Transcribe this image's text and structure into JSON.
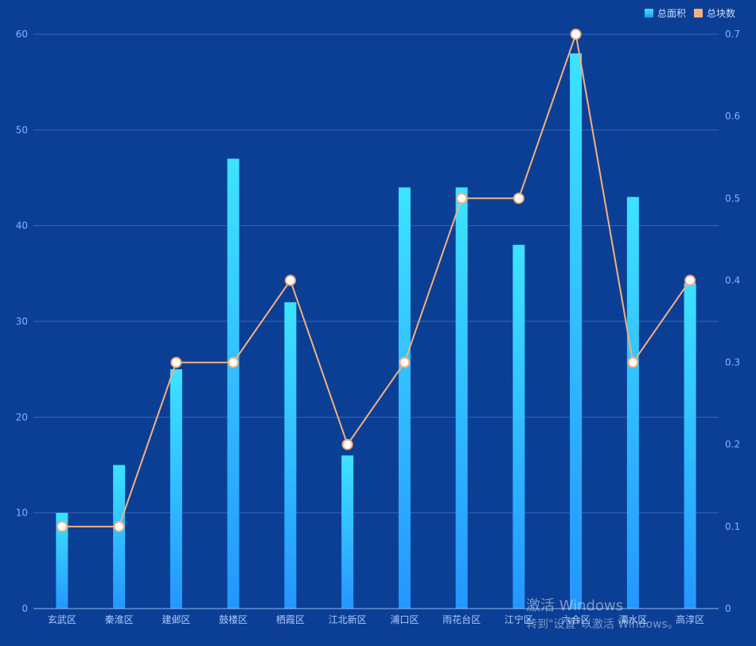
{
  "chart_data": {
    "type": "bar",
    "categories": [
      "玄武区",
      "秦淮区",
      "建邺区",
      "鼓楼区",
      "栖霞区",
      "江北新区",
      "浦口区",
      "雨花台区",
      "江宁区",
      "六合区",
      "溧水区",
      "高淳区"
    ],
    "series": [
      {
        "name": "总面积",
        "type": "bar",
        "axis": "left",
        "color_top": "#3de3ff",
        "color_bottom": "#2596ff",
        "values": [
          10,
          15,
          25,
          47,
          32,
          16,
          44,
          44,
          38,
          58,
          43,
          34
        ]
      },
      {
        "name": "总块数",
        "type": "line",
        "axis": "right",
        "color": "#f4b07e",
        "values": [
          0.1,
          0.1,
          0.3,
          0.3,
          0.4,
          0.2,
          0.3,
          0.5,
          0.5,
          0.7,
          0.3,
          0.4
        ]
      }
    ],
    "y_left": {
      "min": 0,
      "max": 60,
      "ticks": [
        "0",
        "10",
        "20",
        "30",
        "40",
        "50",
        "60"
      ]
    },
    "y_right": {
      "min": 0,
      "max": 0.7,
      "ticks": [
        "0",
        "0.1",
        "0.2",
        "0.3",
        "0.4",
        "0.5",
        "0.6",
        "0.7"
      ]
    },
    "grid": true,
    "legend_position": "top-right",
    "background": "#0b3f95",
    "grid_color": "#3a64b0"
  },
  "watermark": {
    "line1": "激活 Windows",
    "line2": "转到\"设置\"以激活 Windows。"
  }
}
